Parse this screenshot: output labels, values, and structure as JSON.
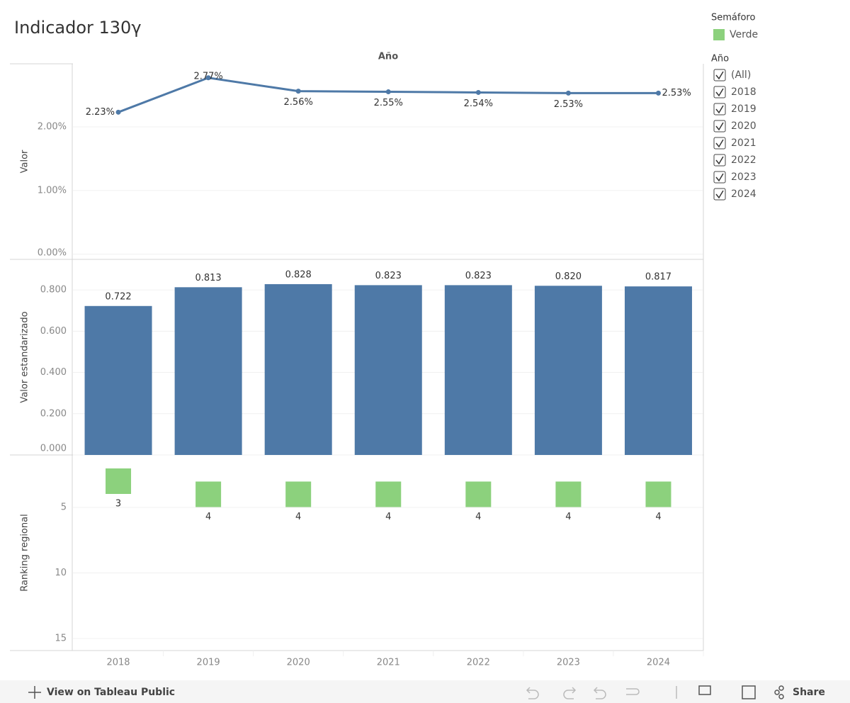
{
  "title": "Indicador 130γ",
  "x_axis_title": "Año",
  "chart_data": [
    {
      "type": "line",
      "y_label": "Valor",
      "values": [
        2.23,
        2.77,
        2.56,
        2.55,
        2.54,
        2.53,
        2.53
      ],
      "value_labels": [
        "2.23%",
        "2.77%",
        "2.56%",
        "2.55%",
        "2.54%",
        "2.53%",
        "2.53%"
      ],
      "color": "#4e79a7",
      "ylim": [
        -0.08,
        2.99
      ],
      "yticks": [
        {
          "value": 0,
          "label": "0.00%"
        },
        {
          "value": 1,
          "label": "1.00%"
        },
        {
          "value": 2,
          "label": "2.00%"
        }
      ],
      "grid": true
    },
    {
      "type": "bar",
      "y_label": "Valor estandarizado",
      "values": [
        0.722,
        0.813,
        0.828,
        0.823,
        0.823,
        0.82,
        0.817
      ],
      "value_labels": [
        "0.722",
        "0.813",
        "0.828",
        "0.823",
        "0.823",
        "0.820",
        "0.817"
      ],
      "color": "#4e79a7",
      "ylim": [
        0,
        0.948
      ],
      "yticks": [
        {
          "value": 0,
          "label": "0.000"
        },
        {
          "value": 0.2,
          "label": "0.200"
        },
        {
          "value": 0.4,
          "label": "0.400"
        },
        {
          "value": 0.6,
          "label": "0.600"
        },
        {
          "value": 0.8,
          "label": "0.800"
        }
      ],
      "grid": true
    },
    {
      "type": "square",
      "y_label": "Ranking regional",
      "categories": [
        "2018",
        "2019",
        "2020",
        "2021",
        "2022",
        "2023",
        "2024"
      ],
      "values": [
        3,
        4,
        4,
        4,
        4,
        4,
        4
      ],
      "color": "#8cd17d",
      "ylim": [
        1,
        15.92
      ],
      "reversed": true,
      "yticks": [
        5,
        10,
        15
      ],
      "grid": true
    }
  ],
  "legend": {
    "title": "Semáforo",
    "items": [
      "Verde"
    ]
  },
  "filter": {
    "title": "Año",
    "items": [
      "(All)",
      "2018",
      "2019",
      "2020",
      "2021",
      "2022",
      "2023",
      "2024"
    ]
  },
  "toolbar": {
    "link": "View on Tableau Public",
    "share": "Share"
  }
}
